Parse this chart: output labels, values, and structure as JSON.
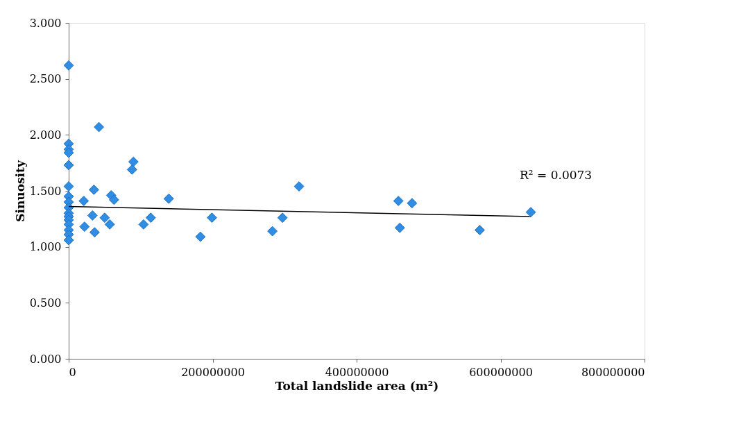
{
  "chart_data": {
    "type": "scatter",
    "xlabel": "Total landslide area (m²)",
    "ylabel": "Sinuosity",
    "xlim": [
      0,
      800000000
    ],
    "xticks": [
      0,
      200000000,
      400000000,
      600000000,
      800000000
    ],
    "ylim": [
      0,
      3
    ],
    "yticks": [
      {
        "value": 0,
        "label": "0.000"
      },
      {
        "value": 0.5,
        "label": "0.500"
      },
      {
        "value": 1,
        "label": "1.000"
      },
      {
        "value": 1.5,
        "label": "1.500"
      },
      {
        "value": 2,
        "label": "2.000"
      },
      {
        "value": 2.5,
        "label": "2.500"
      },
      {
        "value": 3,
        "label": "3.000"
      }
    ],
    "grid": false,
    "marker": "diamond",
    "annotations": [
      "R² = 0.0073"
    ],
    "series": [
      {
        "color": "#2f8de4",
        "x": [
          0,
          0,
          0,
          0,
          0,
          0,
          0,
          0,
          0,
          0,
          0,
          0,
          0,
          0,
          0,
          0,
          42000000,
          90000000,
          88000000,
          35000000,
          59000000,
          63000000,
          21000000,
          33000000,
          22000000,
          36000000,
          50000000,
          57000000,
          104000000,
          114000000,
          183000000,
          139000000,
          199000000,
          320000000,
          297000000,
          283000000,
          458000000,
          477000000,
          460000000,
          571000000,
          642000000
        ],
        "values": [
          2.62,
          1.92,
          1.87,
          1.84,
          1.73,
          1.54,
          1.45,
          1.4,
          1.35,
          1.3,
          1.27,
          1.24,
          1.2,
          1.15,
          1.11,
          1.06,
          2.07,
          1.76,
          1.69,
          1.51,
          1.46,
          1.42,
          1.41,
          1.28,
          1.18,
          1.13,
          1.26,
          1.2,
          1.2,
          1.26,
          1.09,
          1.43,
          1.26,
          1.54,
          1.26,
          1.14,
          1.41,
          1.39,
          1.17,
          1.15,
          1.31
        ]
      },
      {
        "type": "line",
        "color": "#000000",
        "x": [
          0,
          642000000
        ],
        "values": [
          1.36,
          1.27
        ],
        "marker": "none"
      }
    ]
  }
}
